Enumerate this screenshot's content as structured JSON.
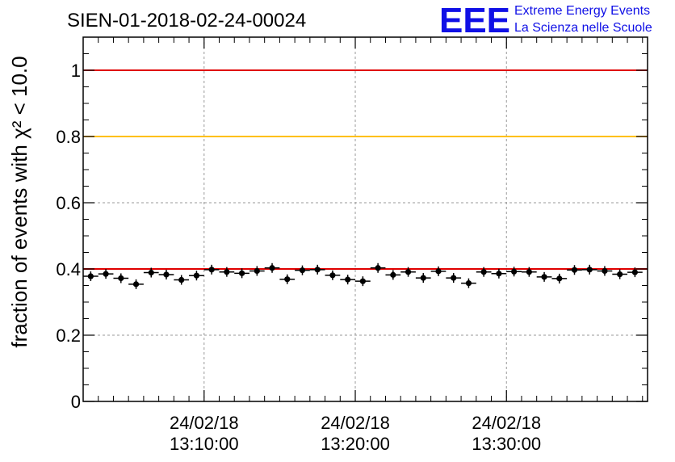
{
  "logo": {
    "letters": "EEE",
    "line1": "Extreme Energy Events",
    "line2": "La Scienza nelle Scuole"
  },
  "chart_data": {
    "type": "scatter",
    "title": "SIEN-01-2018-02-24-00024",
    "xlabel": "",
    "ylabel": "fraction of events with χ² < 10.0",
    "ylim": [
      0,
      1.1
    ],
    "xlim": [
      "24/02/18 13:02:00",
      "24/02/18 13:39:20"
    ],
    "yticks": [
      "0",
      "0.2",
      "0.4",
      "0.6",
      "0.8",
      "1"
    ],
    "xticks": [
      {
        "date": "24/02/18",
        "time": "13:10:00"
      },
      {
        "date": "24/02/18",
        "time": "13:20:00"
      },
      {
        "date": "24/02/18",
        "time": "13:30:00"
      }
    ],
    "grid": true,
    "reference_lines": [
      {
        "y": 1.0,
        "color": "#e00000"
      },
      {
        "y": 0.8,
        "color": "#ffc000"
      },
      {
        "y": 0.4,
        "color": "#e00000"
      }
    ],
    "x": [
      "13:02:30",
      "13:03:30",
      "13:04:30",
      "13:05:30",
      "13:06:30",
      "13:07:30",
      "13:08:30",
      "13:09:30",
      "13:10:30",
      "13:11:30",
      "13:12:30",
      "13:13:30",
      "13:14:30",
      "13:15:30",
      "13:16:30",
      "13:17:30",
      "13:18:30",
      "13:19:30",
      "13:20:30",
      "13:21:30",
      "13:22:30",
      "13:23:30",
      "13:24:30",
      "13:25:30",
      "13:26:30",
      "13:27:30",
      "13:28:30",
      "13:29:30",
      "13:30:30",
      "13:31:30",
      "13:32:30",
      "13:33:30",
      "13:34:30",
      "13:35:30",
      "13:36:30",
      "13:37:30",
      "13:38:30"
    ],
    "y": [
      0.378,
      0.385,
      0.372,
      0.354,
      0.389,
      0.383,
      0.367,
      0.38,
      0.398,
      0.391,
      0.387,
      0.394,
      0.403,
      0.369,
      0.396,
      0.398,
      0.381,
      0.368,
      0.363,
      0.403,
      0.382,
      0.391,
      0.373,
      0.393,
      0.373,
      0.357,
      0.391,
      0.386,
      0.392,
      0.391,
      0.376,
      0.371,
      0.397,
      0.398,
      0.394,
      0.384,
      0.39
    ]
  }
}
